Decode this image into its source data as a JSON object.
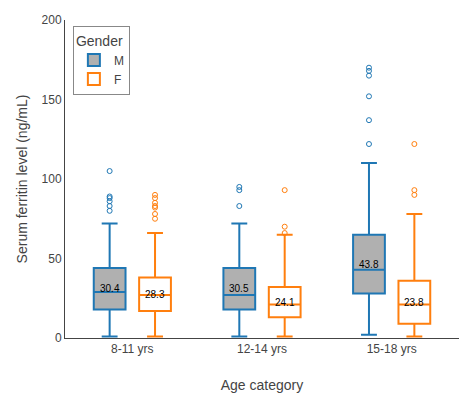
{
  "chart_data": {
    "type": "box",
    "xlabel": "Age category",
    "ylabel": "Serum ferritin level (ng/mL)",
    "categories": [
      "8-11 yrs",
      "12-14 yrs",
      "15-18 yrs"
    ],
    "legend_title": "Gender",
    "legend": "upper left",
    "grid": false,
    "data_labels": true,
    "ylim": [
      0,
      200
    ],
    "yticks": [
      0,
      50,
      100,
      150,
      200
    ],
    "series": [
      {
        "name": "M",
        "color": "#b0b0b0",
        "boxes": [
          {
            "q1": 18,
            "median": 29,
            "q3": 44,
            "whislo": 1,
            "whishi": 72,
            "mean": 30.4,
            "fliers": [
              80,
              83,
              86,
              88,
              89,
              105
            ]
          },
          {
            "q1": 18,
            "median": 27,
            "q3": 44,
            "whislo": 1,
            "whishi": 72,
            "mean": 30.5,
            "fliers": [
              83,
              93,
              95
            ]
          },
          {
            "q1": 28,
            "median": 43,
            "q3": 65,
            "whislo": 2,
            "whishi": 110,
            "mean": 43.8,
            "fliers": [
              122,
              137,
              152,
              165,
              168,
              170
            ]
          }
        ]
      },
      {
        "name": "F",
        "color": "#ffffff",
        "boxes": [
          {
            "q1": 17,
            "median": 27,
            "q3": 38,
            "whislo": 1,
            "whishi": 66,
            "mean": 28.3,
            "fliers": [
              75,
              78,
              82,
              83,
              85,
              88,
              90
            ]
          },
          {
            "q1": 13,
            "median": 21,
            "q3": 32,
            "whislo": 1,
            "whishi": 65,
            "mean": 24.1,
            "fliers": [
              66,
              70,
              93
            ]
          },
          {
            "q1": 9,
            "median": 21,
            "q3": 36,
            "whislo": 1,
            "whishi": 78,
            "mean": 23.8,
            "fliers": [
              90,
              93,
              122
            ]
          }
        ]
      }
    ]
  }
}
